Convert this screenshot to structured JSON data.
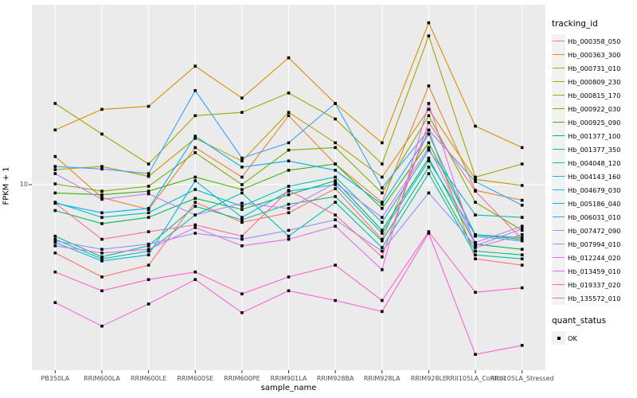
{
  "axes": {
    "x_title": "sample_name",
    "y_title": "FPKM + 1"
  },
  "legend": {
    "tracking_title": "tracking_id",
    "quant_title": "quant_status",
    "quant_items": [
      {
        "label": "OK",
        "marker": "black-square",
        "marker_color": "#000000"
      }
    ]
  },
  "style": {
    "panel_bg": "#EBEBEB",
    "gridline_color": "#FFFFFF",
    "tick_text_color": "#4D4D4D",
    "tick_mark_color": "#333333",
    "point_color": "#000000",
    "legend_key_bg": "#F2F2F2"
  },
  "chart_data": {
    "type": "line",
    "title": "",
    "xlabel": "sample_name",
    "ylabel": "FPKM + 1",
    "yscale": "log10",
    "ylim": [
      0.95,
      98
    ],
    "grid": "major",
    "legend_position": "right",
    "y_ticks": [
      {
        "value": 10,
        "label": "10"
      }
    ],
    "y_major_gridlines": [
      10
    ],
    "x": [
      "PB350LA",
      "RRIM600LA",
      "RRIM600LE",
      "RRIM600SE",
      "RRIM600PE",
      "RRIM901LA",
      "RRIM928BA",
      "RRIM928LA",
      "RRIM928LE",
      "RRII105LA_Control",
      "RRII105LA_Stressed"
    ],
    "point_marker": "square",
    "series": [
      {
        "name": "Hb_000358_050",
        "color": "#F8766D",
        "values": [
          4.2,
          3.1,
          3.6,
          8.0,
          6.2,
          7.0,
          9.5,
          5.0,
          20,
          3.9,
          3.6
        ]
      },
      {
        "name": "Hb_000363_300",
        "color": "#EA8331",
        "values": [
          14.3,
          8.5,
          7.3,
          16,
          11,
          24,
          13,
          8.0,
          35,
          9.3,
          8.2
        ]
      },
      {
        "name": "Hb_000731_010",
        "color": "#D89000",
        "values": [
          20,
          26,
          27,
          45,
          30,
          50,
          28,
          17,
          78,
          21,
          16
        ]
      },
      {
        "name": "Hb_000809_230",
        "color": "#C09B00",
        "values": [
          12.1,
          12.6,
          11.1,
          18,
          13.5,
          25,
          17,
          11,
          26,
          10.7,
          9.9
        ]
      },
      {
        "name": "Hb_000815_170",
        "color": "#A3A500",
        "values": [
          28,
          19,
          13,
          24,
          25,
          32,
          23,
          13,
          66,
          11,
          13
        ]
      },
      {
        "name": "Hb_000922_030",
        "color": "#7CAE00",
        "values": [
          10.1,
          9.2,
          9.8,
          15,
          10,
          15.5,
          16,
          9.0,
          24,
          8.0,
          5.6
        ]
      },
      {
        "name": "Hb_000925_090",
        "color": "#39B600",
        "values": [
          9.0,
          8.8,
          9.2,
          11,
          9.4,
          12,
          13,
          7.4,
          17,
          5.3,
          5.0
        ]
      },
      {
        "name": "Hb_001377_100",
        "color": "#00BB4E",
        "values": [
          7.2,
          6.1,
          6.6,
          8.4,
          7.3,
          8.8,
          10.5,
          5.6,
          14,
          4.7,
          4.4
        ]
      },
      {
        "name": "Hb_001377_350",
        "color": "#00BF7D",
        "values": [
          5.2,
          4.0,
          4.6,
          7.6,
          6.4,
          7.8,
          8.6,
          4.9,
          12.5,
          4.3,
          4.1
        ]
      },
      {
        "name": "Hb_004048_120",
        "color": "#00C1A3",
        "values": [
          5.0,
          3.9,
          4.3,
          6.8,
          9.0,
          5.2,
          8.0,
          4.5,
          11.5,
          4.1,
          3.9
        ]
      },
      {
        "name": "Hb_004143_160",
        "color": "#00BFC4",
        "values": [
          8.0,
          6.6,
          7.0,
          9.4,
          7.6,
          9.8,
          11,
          6.2,
          15.5,
          6.8,
          6.6
        ]
      },
      {
        "name": "Hb_004679_030",
        "color": "#00BAE0",
        "values": [
          4.8,
          3.8,
          4.1,
          10.5,
          6.6,
          9.2,
          10,
          5.4,
          13.5,
          5.3,
          5.1
        ]
      },
      {
        "name": "Hb_005186_040",
        "color": "#00B0F6",
        "values": [
          7.9,
          7.0,
          7.4,
          18.5,
          12.5,
          13.5,
          12,
          7.8,
          19,
          5.2,
          4.9
        ]
      },
      {
        "name": "Hb_006031_010",
        "color": "#35A2FF",
        "values": [
          12.6,
          12.2,
          11.5,
          33,
          14,
          17,
          28,
          9.6,
          20,
          10.4,
          7.7
        ]
      },
      {
        "name": "Hb_007472_090",
        "color": "#9590FF",
        "values": [
          4.9,
          4.4,
          4.7,
          5.4,
          5.0,
          5.6,
          6.4,
          4.3,
          9.0,
          4.6,
          5.7
        ]
      },
      {
        "name": "Hb_007994_010",
        "color": "#C77CFF",
        "values": [
          11.5,
          8.3,
          8.9,
          6.8,
          7.9,
          7.4,
          10.2,
          6.6,
          16,
          4.8,
          5.9
        ]
      },
      {
        "name": "Hb_012244_020",
        "color": "#E76BF3",
        "values": [
          4.6,
          4.2,
          4.4,
          5.8,
          4.6,
          5.0,
          5.9,
          3.4,
          28,
          4.5,
          5.3
        ]
      },
      {
        "name": "Hb_013459_010",
        "color": "#FA62DB",
        "values": [
          2.24,
          1.66,
          2.2,
          3.0,
          1.97,
          2.6,
          2.3,
          2.0,
          5.4,
          1.16,
          1.3
        ]
      },
      {
        "name": "Hb_019337_020",
        "color": "#FF61CC",
        "values": [
          3.3,
          2.6,
          3.0,
          3.3,
          2.5,
          3.1,
          3.6,
          2.3,
          5.5,
          2.55,
          2.7
        ]
      },
      {
        "name": "Hb_135572_010",
        "color": "#FF6A98",
        "values": [
          7.9,
          5.0,
          5.5,
          6.0,
          5.2,
          9.3,
          6.8,
          4.0,
          22,
          9.2,
          5.0
        ]
      }
    ]
  }
}
